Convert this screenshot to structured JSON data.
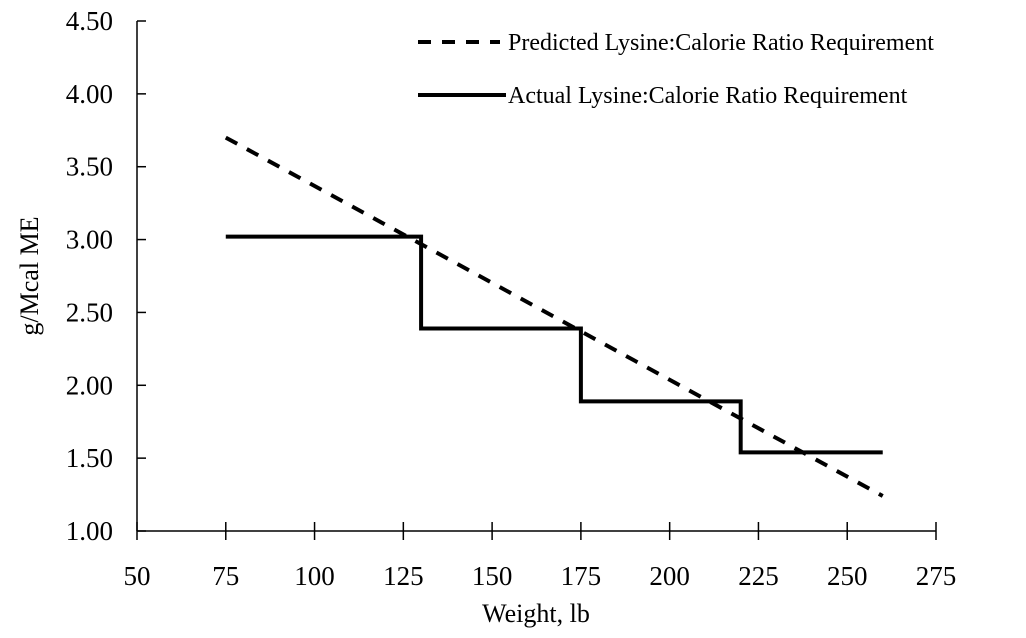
{
  "chart_data": {
    "type": "line",
    "xlabel": "Weight, lb",
    "ylabel": "g/Mcal ME",
    "xlim": [
      50,
      275
    ],
    "ylim": [
      1.0,
      4.5
    ],
    "x_ticks": [
      "50",
      "75",
      "100",
      "125",
      "150",
      "175",
      "200",
      "225",
      "250",
      "275"
    ],
    "y_ticks": [
      "1.00",
      "1.50",
      "2.00",
      "2.50",
      "3.00",
      "3.50",
      "4.00",
      "4.50"
    ],
    "grid": false,
    "legend_position": "top-right",
    "series": [
      {
        "name": "Predicted Lysine:Calorie Ratio Requirement",
        "style": "dashed",
        "color": "#000000",
        "x": [
          75,
          260
        ],
        "y": [
          3.7,
          1.24
        ]
      },
      {
        "name": "Actual Lysine:Calorie Ratio Requirement",
        "style": "solid",
        "color": "#000000",
        "x": [
          75,
          130,
          130,
          175,
          175,
          220,
          220,
          260
        ],
        "y": [
          3.02,
          3.02,
          2.39,
          2.39,
          1.89,
          1.89,
          1.54,
          1.54
        ]
      }
    ]
  }
}
